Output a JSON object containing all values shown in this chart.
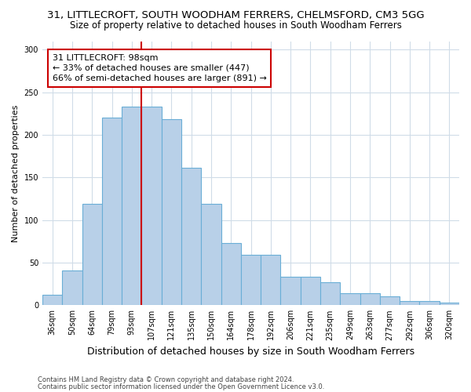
{
  "title": "31, LITTLECROFT, SOUTH WOODHAM FERRERS, CHELMSFORD, CM3 5GG",
  "subtitle": "Size of property relative to detached houses in South Woodham Ferrers",
  "xlabel": "Distribution of detached houses by size in South Woodham Ferrers",
  "ylabel": "Number of detached properties",
  "footnote1": "Contains HM Land Registry data © Crown copyright and database right 2024.",
  "footnote2": "Contains public sector information licensed under the Open Government Licence v3.0.",
  "bar_labels": [
    "36sqm",
    "50sqm",
    "64sqm",
    "79sqm",
    "93sqm",
    "107sqm",
    "121sqm",
    "135sqm",
    "150sqm",
    "164sqm",
    "178sqm",
    "192sqm",
    "206sqm",
    "221sqm",
    "235sqm",
    "249sqm",
    "263sqm",
    "277sqm",
    "292sqm",
    "306sqm",
    "320sqm"
  ],
  "bar_values": [
    12,
    41,
    119,
    220,
    233,
    233,
    218,
    161,
    119,
    73,
    59,
    59,
    33,
    33,
    27,
    14,
    14,
    10,
    5,
    5,
    3
  ],
  "bar_color": "#b8d0e8",
  "bar_edge_color": "#6aaed6",
  "vline_x": 4.5,
  "vline_color": "#cc0000",
  "annotation_line1": "31 LITTLECROFT: 98sqm",
  "annotation_line2": "← 33% of detached houses are smaller (447)",
  "annotation_line3": "66% of semi-detached houses are larger (891) →",
  "annotation_box_color": "#ffffff",
  "annotation_box_edge": "#cc0000",
  "ylim": [
    0,
    310
  ],
  "yticks": [
    0,
    50,
    100,
    150,
    200,
    250,
    300
  ],
  "title_fontsize": 9.5,
  "subtitle_fontsize": 8.5,
  "xlabel_fontsize": 9,
  "ylabel_fontsize": 8,
  "tick_fontsize": 7,
  "annotation_fontsize": 8,
  "background_color": "#ffffff",
  "plot_background": "#ffffff",
  "grid_color": "#d0dce8"
}
